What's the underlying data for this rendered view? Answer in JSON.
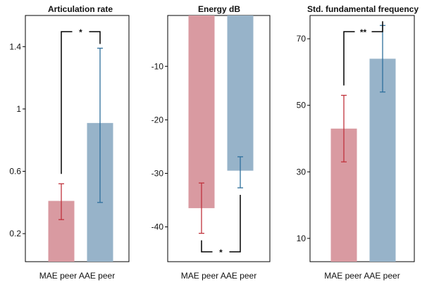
{
  "colors": {
    "mae": "#d99aa1",
    "aae": "#97b3c9",
    "mae_err": "#c0323c",
    "aae_err": "#2e6f9c"
  },
  "chart_data": [
    {
      "type": "bar",
      "title": "Articulation rate",
      "categories": [
        "MAE peer",
        "AAE peer"
      ],
      "values": [
        0.41,
        0.91
      ],
      "err_low": [
        0.29,
        0.4
      ],
      "err_high": [
        0.52,
        1.39
      ],
      "ylim": [
        0.02,
        1.6
      ],
      "yticks": [
        0.2,
        0.6,
        1,
        1.4
      ],
      "ytick_labels": [
        "0.2",
        "0.6",
        "1",
        "1.4"
      ],
      "bar_base": 0.02,
      "significance": {
        "label": "*",
        "position": "top"
      }
    },
    {
      "type": "bar",
      "title": "Energy dB",
      "categories": [
        "MAE peer",
        "AAE peer"
      ],
      "values": [
        -36.5,
        -29.5
      ],
      "err_low": [
        -41.2,
        -32.7
      ],
      "err_high": [
        -31.8,
        -26.9
      ],
      "ylim": [
        -46.5,
        -0.5
      ],
      "yticks": [
        -10,
        -20,
        -30,
        -40
      ],
      "ytick_labels": [
        "-10",
        "-20",
        "-30",
        "-40"
      ],
      "bar_base": -0.5,
      "significance": {
        "label": "*",
        "position": "bottom"
      }
    },
    {
      "type": "bar",
      "title": "Std. fundamental frequency",
      "categories": [
        "MAE peer",
        "AAE peer"
      ],
      "values": [
        43,
        64
      ],
      "err_low": [
        33,
        54
      ],
      "err_high": [
        53,
        74
      ],
      "ylim": [
        3,
        77
      ],
      "yticks": [
        10,
        30,
        50,
        70
      ],
      "ytick_labels": [
        "10",
        "30",
        "50",
        "70"
      ],
      "bar_base": 3,
      "significance": {
        "label": "**",
        "position": "top"
      }
    }
  ]
}
